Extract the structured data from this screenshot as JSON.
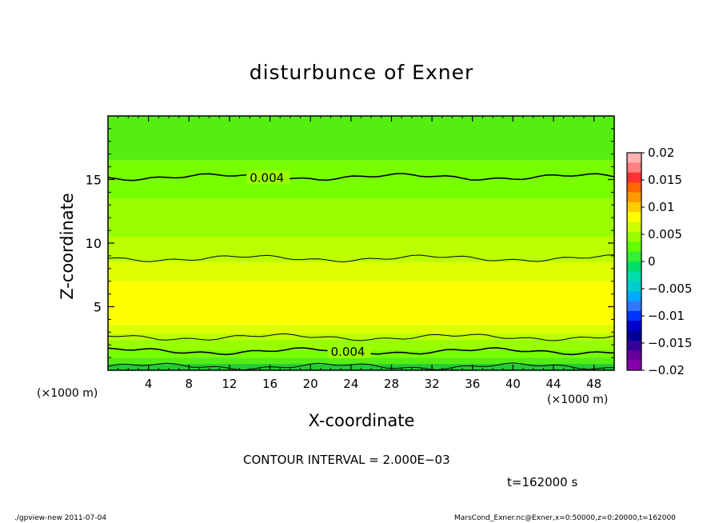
{
  "chart_data": {
    "type": "heatmap",
    "title": "disturbunce of Exner",
    "xlabel": "X-coordinate",
    "ylabel": "Z-coordinate",
    "x_unit": "(×1000 m)",
    "y_unit": "(×1000 m)",
    "xlim": [
      0,
      50
    ],
    "ylim": [
      0,
      20
    ],
    "x_ticks": [
      4,
      8,
      12,
      16,
      20,
      24,
      28,
      32,
      36,
      40,
      44,
      48
    ],
    "y_ticks": [
      5,
      10,
      15
    ],
    "bands": [
      {
        "z0": 0.0,
        "z1": 0.5,
        "value": 0.001
      },
      {
        "z0": 0.5,
        "z1": 1.0,
        "value": 0.002
      },
      {
        "z0": 1.0,
        "z1": 1.6,
        "value": 0.003
      },
      {
        "z0": 1.6,
        "z1": 2.4,
        "value": 0.004
      },
      {
        "z0": 2.4,
        "z1": 2.9,
        "value": 0.005
      },
      {
        "z0": 2.9,
        "z1": 3.6,
        "value": 0.006
      },
      {
        "z0": 3.6,
        "z1": 7.0,
        "value": 0.007
      },
      {
        "z0": 7.0,
        "z1": 8.5,
        "value": 0.006
      },
      {
        "z0": 8.5,
        "z1": 10.5,
        "value": 0.005
      },
      {
        "z0": 10.5,
        "z1": 13.5,
        "value": 0.004
      },
      {
        "z0": 13.5,
        "z1": 16.5,
        "value": 0.003
      },
      {
        "z0": 16.5,
        "z1": 20.0,
        "value": 0.002
      }
    ],
    "contours": [
      {
        "value": 0.002,
        "label": "",
        "z": 0.3
      },
      {
        "value": 0.004,
        "label": "0.004",
        "z": 1.5,
        "label_x": 22
      },
      {
        "value": 0.006,
        "label": "",
        "z": 2.6
      },
      {
        "value": 0.006,
        "label": "",
        "z": 8.8
      },
      {
        "value": 0.004,
        "label": "0.004",
        "z": 15.2,
        "label_x": 14
      }
    ],
    "colorbar": {
      "ticks": [
        "0.02",
        "0.015",
        "0.01",
        "0.005",
        "0",
        "−0.005",
        "−0.01",
        "−0.015",
        "−0.02"
      ],
      "colors": [
        "#ffb3b3",
        "#ff8080",
        "#ff3333",
        "#ff6600",
        "#ff9900",
        "#ffcc00",
        "#ffff00",
        "#ccff00",
        "#99ff00",
        "#66ff00",
        "#33ee33",
        "#00dd66",
        "#00ddaa",
        "#00cccc",
        "#00aaff",
        "#3377ff",
        "#0033ff",
        "#0000cc",
        "#000099",
        "#330099",
        "#660099",
        "#8800aa"
      ]
    },
    "colors": {
      "0.001": "#22cc33",
      "0.002": "#55ee11",
      "0.003": "#77ff00",
      "0.004": "#99ff00",
      "0.005": "#bbff00",
      "0.006": "#ddff00",
      "0.007": "#ffff00"
    }
  },
  "contour_interval": "CONTOUR INTERVAL = 2.000E−03",
  "time_label": "t=162000 s",
  "footer_left": "./gpview-new   2011-07-04",
  "footer_right": "MarsCond_Exner.nc@Exner,x=0:50000,z=0:20000,t=162000"
}
